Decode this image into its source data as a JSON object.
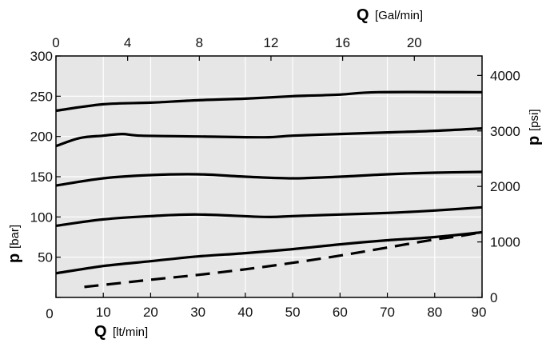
{
  "chart_data": {
    "type": "line",
    "grid": true,
    "plot_background": "#e6e6e6",
    "line_color": "#000000",
    "x_axis_bottom": {
      "symbol": "Q",
      "unit": "[lt/min]",
      "range": [
        0,
        90
      ],
      "ticks": [
        {
          "value": 0,
          "label": "0"
        },
        {
          "value": 10,
          "label": "10"
        },
        {
          "value": 20,
          "label": "20"
        },
        {
          "value": 30,
          "label": "30"
        },
        {
          "value": 40,
          "label": "40"
        },
        {
          "value": 50,
          "label": "50"
        },
        {
          "value": 60,
          "label": "60"
        },
        {
          "value": 70,
          "label": "70"
        },
        {
          "value": 80,
          "label": "80"
        },
        {
          "value": 90,
          "label": "90"
        }
      ]
    },
    "x_axis_top": {
      "symbol": "Q",
      "unit": "[Gal/min]",
      "range": [
        0,
        23.78
      ],
      "ticks": [
        {
          "value": 0,
          "label": "0"
        },
        {
          "value": 4,
          "label": "4"
        },
        {
          "value": 8,
          "label": "8"
        },
        {
          "value": 12,
          "label": "12"
        },
        {
          "value": 16,
          "label": "16"
        },
        {
          "value": 20,
          "label": "20"
        }
      ]
    },
    "y_axis_left": {
      "symbol": "p",
      "unit": "[bar]",
      "range": [
        0,
        300
      ],
      "ticks": [
        {
          "value": 0,
          "label": "0"
        },
        {
          "value": 50,
          "label": "50"
        },
        {
          "value": 100,
          "label": "100"
        },
        {
          "value": 150,
          "label": "150"
        },
        {
          "value": 200,
          "label": "200"
        },
        {
          "value": 250,
          "label": "250"
        },
        {
          "value": 300,
          "label": "300"
        }
      ]
    },
    "y_axis_right": {
      "symbol": "p",
      "unit": "[psi]",
      "range": [
        0,
        4351
      ],
      "ticks": [
        {
          "value": 0,
          "label": "0"
        },
        {
          "value": 1000,
          "label": "1000"
        },
        {
          "value": 2000,
          "label": "2000"
        },
        {
          "value": 3000,
          "label": "3000"
        },
        {
          "value": 4000,
          "label": "4000"
        }
      ]
    },
    "series": [
      {
        "style": "solid",
        "points": [
          [
            0,
            232
          ],
          [
            10,
            240
          ],
          [
            20,
            242
          ],
          [
            30,
            245
          ],
          [
            40,
            247
          ],
          [
            50,
            250
          ],
          [
            60,
            252
          ],
          [
            68,
            255
          ],
          [
            90,
            255
          ]
        ]
      },
      {
        "style": "solid",
        "points": [
          [
            0,
            188
          ],
          [
            5,
            198
          ],
          [
            10,
            201
          ],
          [
            14,
            203
          ],
          [
            18,
            201
          ],
          [
            30,
            200
          ],
          [
            44,
            199
          ],
          [
            50,
            201
          ],
          [
            60,
            203
          ],
          [
            70,
            205
          ],
          [
            80,
            207
          ],
          [
            90,
            210
          ]
        ]
      },
      {
        "style": "solid",
        "points": [
          [
            0,
            139
          ],
          [
            10,
            148
          ],
          [
            20,
            152
          ],
          [
            30,
            153
          ],
          [
            40,
            150
          ],
          [
            50,
            148
          ],
          [
            60,
            150
          ],
          [
            70,
            153
          ],
          [
            80,
            155
          ],
          [
            90,
            156
          ]
        ]
      },
      {
        "style": "solid",
        "points": [
          [
            0,
            89
          ],
          [
            10,
            97
          ],
          [
            20,
            101
          ],
          [
            30,
            103
          ],
          [
            44,
            100
          ],
          [
            50,
            101
          ],
          [
            60,
            103
          ],
          [
            70,
            105
          ],
          [
            80,
            108
          ],
          [
            90,
            112
          ]
        ]
      },
      {
        "style": "solid",
        "points": [
          [
            0,
            30
          ],
          [
            10,
            39
          ],
          [
            20,
            45
          ],
          [
            30,
            51
          ],
          [
            40,
            55
          ],
          [
            50,
            60
          ],
          [
            60,
            66
          ],
          [
            70,
            71
          ],
          [
            80,
            75
          ],
          [
            90,
            81
          ]
        ]
      },
      {
        "style": "dashed",
        "points": [
          [
            6,
            13
          ],
          [
            20,
            22
          ],
          [
            30,
            28
          ],
          [
            40,
            35
          ],
          [
            50,
            43
          ],
          [
            60,
            52
          ],
          [
            70,
            62
          ],
          [
            80,
            72
          ],
          [
            85,
            76
          ],
          [
            90,
            81
          ]
        ]
      }
    ]
  }
}
